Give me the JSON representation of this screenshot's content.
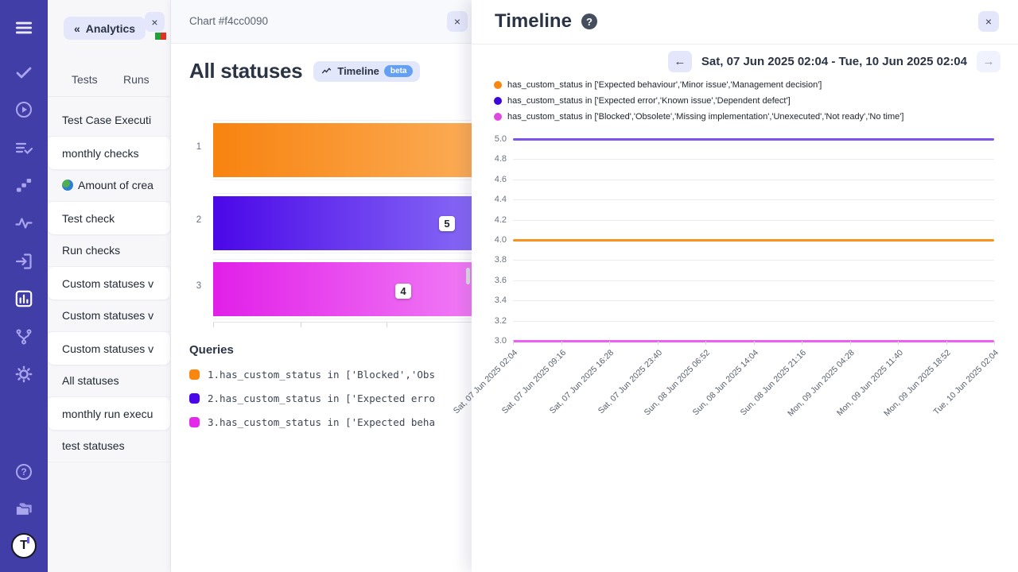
{
  "colors": {
    "sidebar_bg": "#423ea8",
    "lavender_button": "#e4e7fb",
    "orange": "#f8860f",
    "purple": "#4a07e8",
    "magenta": "#e329ea",
    "beta_blue": "#64a0f2",
    "flag_green": "#21a038",
    "flag_red": "#df3022"
  },
  "left_nav": {
    "icons": [
      "menu-icon",
      "check-icon",
      "play-circle-icon",
      "list-check-icon",
      "steps-icon",
      "pulse-icon",
      "import-icon",
      "bar-chart-icon",
      "branch-icon",
      "gear-icon",
      "help-circle-icon",
      "folder-icon",
      "logo-avatar"
    ],
    "active": "bar-chart-icon",
    "logo_letter": "T"
  },
  "sidebar": {
    "collapse_icon": "«",
    "title": "Analytics",
    "close_label": "×",
    "tabs": [
      {
        "label": "Tests"
      },
      {
        "label": "Runs"
      }
    ],
    "items": [
      {
        "label": "Test Case Executi",
        "card": false
      },
      {
        "label": "monthly checks",
        "card": true
      },
      {
        "label": "Amount of crea",
        "card": false,
        "icon": "globe"
      },
      {
        "label": "Test check",
        "card": true
      },
      {
        "label": "Run checks",
        "card": false
      },
      {
        "label": "Custom statuses v",
        "card": true
      },
      {
        "label": "Custom statuses v",
        "card": false
      },
      {
        "label": "Custom statuses v",
        "card": true
      },
      {
        "label": "All statuses",
        "card": false
      },
      {
        "label": "monthly run execu",
        "card": true
      },
      {
        "label": "test statuses",
        "card": false
      }
    ]
  },
  "chart_panel": {
    "header": "Chart #f4cc0090",
    "close_label": "×",
    "title": "All statuses",
    "badge": {
      "label": "Timeline",
      "beta": "beta"
    },
    "queries_title": "Queries",
    "queries": [
      {
        "color": "#f8860f",
        "label": "1.has_custom_status in ['Blocked','Obs"
      },
      {
        "color": "#4a07e8",
        "label": "2.has_custom_status in ['Expected erro"
      },
      {
        "color": "#e329ea",
        "label": "3.has_custom_status in ['Expected beha"
      }
    ]
  },
  "timeline_panel": {
    "title": "Timeline",
    "help_label": "?",
    "close_label": "×",
    "prev_label": "←",
    "next_label": "→",
    "date_range": "Sat, 07 Jun 2025 02:04 - Tue, 10 Jun 2025 02:04",
    "legend": [
      {
        "color": "#f8860f",
        "label": "has_custom_status in ['Expected behaviour','Minor issue','Management decision']"
      },
      {
        "color": "#3c06d8",
        "label": "has_custom_status in ['Expected error','Known issue','Dependent defect']"
      },
      {
        "color": "#e049e0",
        "label": "has_custom_status in ['Blocked','Obsolete','Missing implementation','Unexecuted','Not ready','No time']"
      }
    ]
  },
  "chart_data": [
    {
      "type": "bar",
      "orientation": "horizontal",
      "title": "All statuses",
      "categories": [
        "1",
        "2",
        "3"
      ],
      "series": [
        {
          "name": "1.has_custom_status in ['Blocked','Obs…",
          "color": "#f8860f",
          "value": null
        },
        {
          "name": "2.has_custom_status in ['Expected erro…",
          "color": "#4a07e8",
          "value": 5
        },
        {
          "name": "3.has_custom_status in ['Expected beha…",
          "color": "#e329ea",
          "value": 4
        }
      ],
      "data_labels": [
        "",
        "5",
        "4"
      ],
      "note": "bars are clipped on the right by the overlaying Timeline panel; bar 1 value label not visible"
    },
    {
      "type": "line",
      "title": "Timeline",
      "x": [
        "Sat, 07 Jun 2025 02:04",
        "Sat, 07 Jun 2025 09:16",
        "Sat, 07 Jun 2025 16:28",
        "Sat, 07 Jun 2025 23:40",
        "Sun, 08 Jun 2025 06:52",
        "Sun, 08 Jun 2025 14:04",
        "Sun, 08 Jun 2025 21:16",
        "Mon, 09 Jun 2025 04:28",
        "Mon, 09 Jun 2025 11:40",
        "Mon, 09 Jun 2025 18:52",
        "Tue, 10 Jun 2025 02:04"
      ],
      "series": [
        {
          "name": "has_custom_status in ['Expected error','Known issue','Dependent defect']",
          "color": "#7c52e8",
          "values": [
            5,
            5,
            5,
            5,
            5,
            5,
            5,
            5,
            5,
            5,
            5
          ]
        },
        {
          "name": "has_custom_status in ['Expected behaviour','Minor issue','Management decision']",
          "color": "#f9921c",
          "values": [
            4,
            4,
            4,
            4,
            4,
            4,
            4,
            4,
            4,
            4,
            4
          ]
        },
        {
          "name": "has_custom_status in ['Blocked','Obsolete','Missing implementation','Unexecuted','Not ready','No time']",
          "color": "#ec5ff0",
          "values": [
            3,
            3,
            3,
            3,
            3,
            3,
            3,
            3,
            3,
            3,
            3
          ]
        }
      ],
      "ylim": [
        3.0,
        5.0
      ],
      "ytick_step": 0.2,
      "grid": true,
      "legend_position": "top-left"
    }
  ]
}
